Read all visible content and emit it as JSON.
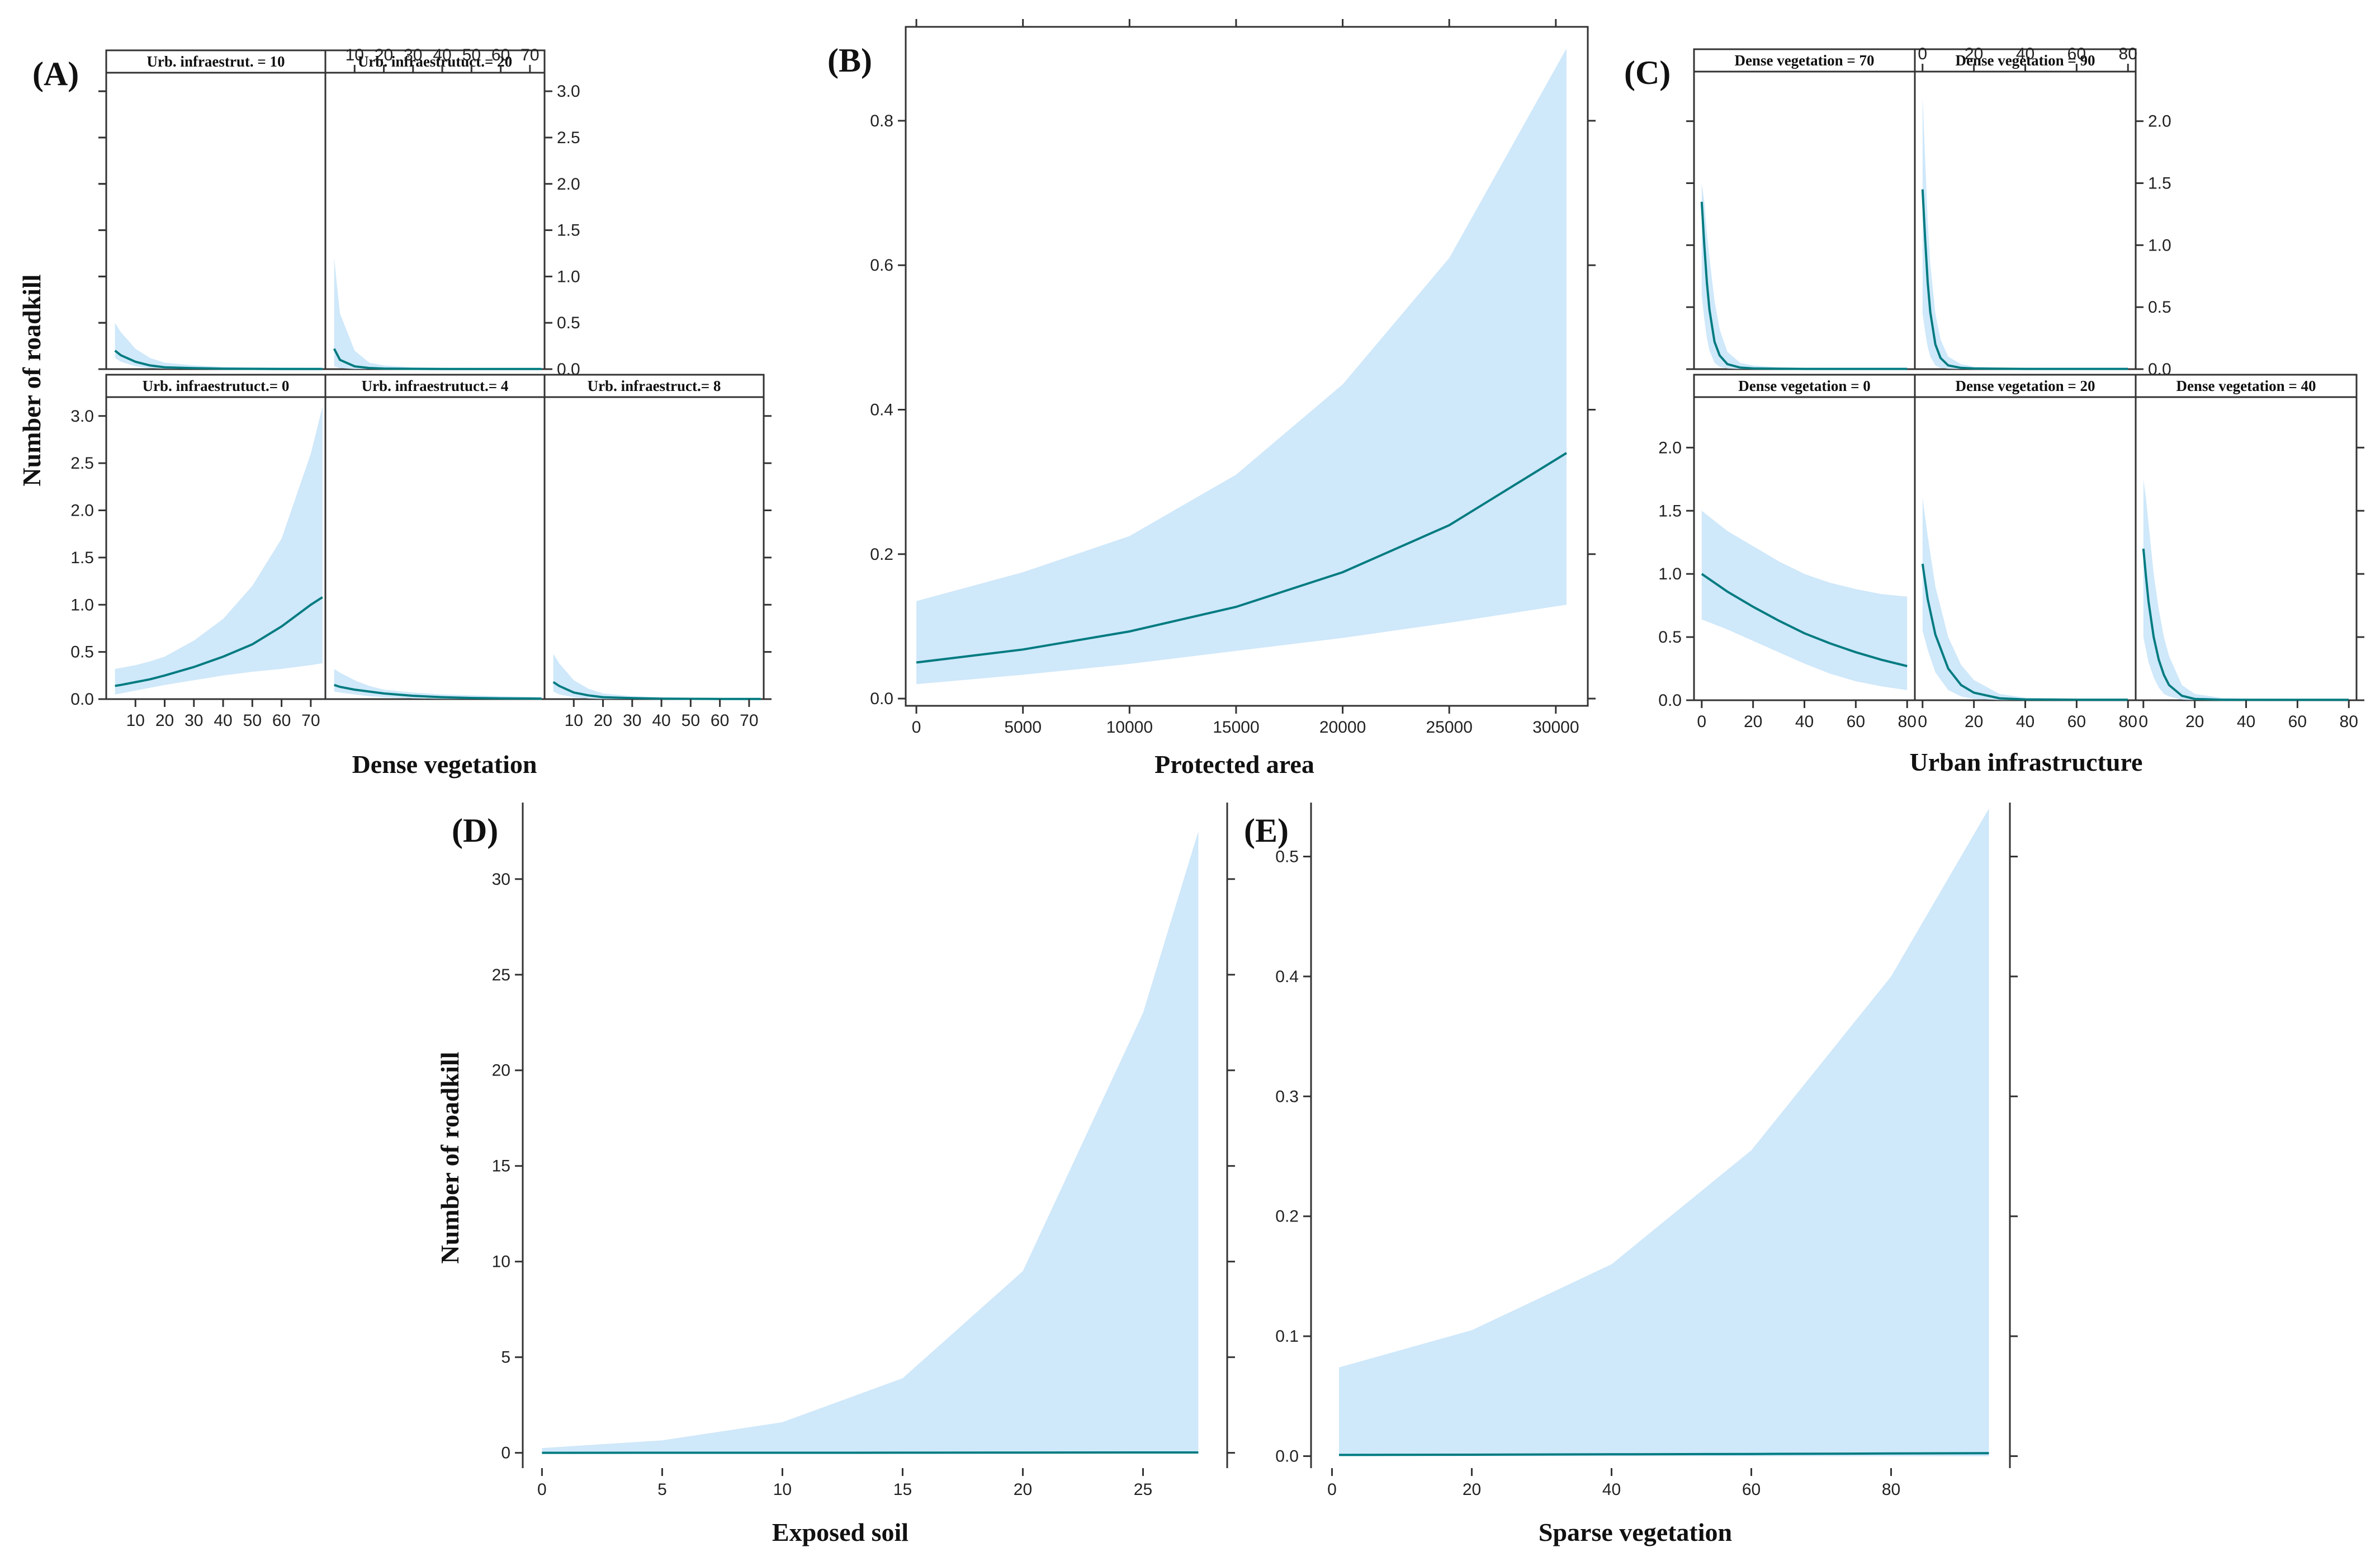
{
  "figure": {
    "y_axis_label": "Number of roadkill",
    "panel_labels": [
      "(A)",
      "(B)",
      "(C)",
      "(D)",
      "(E)"
    ]
  },
  "chart_data": [
    {
      "id": "A",
      "type": "line",
      "title": "(A)",
      "xlabel": "Dense vegetation",
      "ylabel": "Number of roadkill",
      "xlim": [
        0,
        75
      ],
      "ylim": [
        0,
        3.2
      ],
      "xticks": [
        10,
        20,
        30,
        40,
        50,
        60,
        70
      ],
      "yticks": [
        0.0,
        0.5,
        1.0,
        1.5,
        2.0,
        2.5,
        3.0
      ],
      "ytick_labels": [
        "0.0",
        "0.5",
        "1.0",
        "1.5",
        "2.0",
        "2.5",
        "3.0"
      ],
      "series": [
        {
          "name": "Urb. infraestrut. = 10",
          "x": [
            3,
            5,
            10,
            15,
            20,
            30,
            40,
            50,
            60,
            70,
            74
          ],
          "values": [
            0.2,
            0.15,
            0.08,
            0.04,
            0.02,
            0.01,
            0.005,
            0.003,
            0.002,
            0.002,
            0.002
          ],
          "lower": [
            0.12,
            0.08,
            0.03,
            0.01,
            0.005,
            0.002,
            0.001,
            0.0005,
            0.0003,
            0.0002,
            0.0002
          ],
          "upper": [
            0.5,
            0.4,
            0.22,
            0.12,
            0.07,
            0.04,
            0.025,
            0.02,
            0.018,
            0.016,
            0.016
          ]
        },
        {
          "name": "Urb. infraestrutuct.= 20",
          "x": [
            3,
            5,
            10,
            15,
            20,
            30,
            40,
            50,
            60,
            70,
            74
          ],
          "values": [
            0.22,
            0.1,
            0.03,
            0.012,
            0.006,
            0.003,
            0.002,
            0.002,
            0.002,
            0.002,
            0.002
          ],
          "lower": [
            0.03,
            0.01,
            0.002,
            0.001,
            0.0005,
            0.0002,
            0.0001,
            0.0001,
            0.0001,
            0.0001,
            0.0001
          ],
          "upper": [
            1.2,
            0.6,
            0.2,
            0.07,
            0.04,
            0.02,
            0.015,
            0.012,
            0.01,
            0.01,
            0.01
          ]
        },
        {
          "name": "Urb. infraestrutuct.= 0",
          "x": [
            3,
            5,
            10,
            15,
            20,
            30,
            40,
            50,
            60,
            70,
            74
          ],
          "values": [
            0.14,
            0.15,
            0.18,
            0.21,
            0.25,
            0.34,
            0.45,
            0.58,
            0.77,
            1.0,
            1.08
          ],
          "lower": [
            0.05,
            0.06,
            0.09,
            0.12,
            0.15,
            0.2,
            0.25,
            0.29,
            0.32,
            0.36,
            0.38
          ],
          "upper": [
            0.32,
            0.33,
            0.36,
            0.4,
            0.45,
            0.62,
            0.85,
            1.2,
            1.7,
            2.6,
            3.1
          ]
        },
        {
          "name": "Urb. infraestrutuct.= 4",
          "x": [
            3,
            5,
            10,
            15,
            20,
            30,
            40,
            50,
            60,
            70,
            74
          ],
          "values": [
            0.15,
            0.13,
            0.1,
            0.08,
            0.06,
            0.035,
            0.02,
            0.012,
            0.008,
            0.006,
            0.005
          ],
          "lower": [
            0.08,
            0.07,
            0.05,
            0.03,
            0.02,
            0.008,
            0.003,
            0.001,
            0.0005,
            0.0003,
            0.0002
          ],
          "upper": [
            0.32,
            0.28,
            0.2,
            0.14,
            0.1,
            0.07,
            0.05,
            0.04,
            0.03,
            0.025,
            0.022
          ]
        },
        {
          "name": "Urb. infraestruct.= 8",
          "x": [
            3,
            5,
            10,
            15,
            20,
            30,
            40,
            50,
            60,
            70,
            74
          ],
          "values": [
            0.18,
            0.14,
            0.07,
            0.04,
            0.02,
            0.01,
            0.005,
            0.003,
            0.002,
            0.002,
            0.002
          ],
          "lower": [
            0.08,
            0.05,
            0.02,
            0.006,
            0.002,
            0.0005,
            0.0001,
            0.0001,
            0.0001,
            0.0001,
            0.0001
          ],
          "upper": [
            0.48,
            0.38,
            0.2,
            0.11,
            0.06,
            0.03,
            0.02,
            0.015,
            0.012,
            0.01,
            0.01
          ]
        }
      ]
    },
    {
      "id": "B",
      "type": "line",
      "title": "(B)",
      "xlabel": "Protected area",
      "ylabel": "",
      "xlim": [
        -500,
        31500
      ],
      "ylim": [
        -0.01,
        0.93
      ],
      "xticks": [
        0,
        5000,
        10000,
        15000,
        20000,
        25000,
        30000
      ],
      "yticks": [
        0.0,
        0.2,
        0.4,
        0.6,
        0.8
      ],
      "ytick_labels": [
        "0.0",
        "0.2",
        "0.4",
        "0.6",
        "0.8"
      ],
      "series": [
        {
          "name": "fit",
          "x": [
            0,
            5000,
            10000,
            15000,
            20000,
            25000,
            30500
          ],
          "values": [
            0.05,
            0.068,
            0.093,
            0.127,
            0.175,
            0.24,
            0.34
          ],
          "lower": [
            0.02,
            0.033,
            0.048,
            0.066,
            0.084,
            0.105,
            0.13
          ],
          "upper": [
            0.135,
            0.175,
            0.225,
            0.31,
            0.435,
            0.61,
            0.9
          ]
        }
      ]
    },
    {
      "id": "C",
      "type": "line",
      "title": "(C)",
      "xlabel": "Urban infrastructure",
      "ylabel": "",
      "xlim": [
        -3,
        83
      ],
      "ylim": [
        0,
        2.4
      ],
      "xticks": [
        0,
        20,
        40,
        60,
        80
      ],
      "yticks": [
        0.0,
        0.5,
        1.0,
        1.5,
        2.0
      ],
      "ytick_labels": [
        "0.0",
        "0.5",
        "1.0",
        "1.5",
        "2.0"
      ],
      "series": [
        {
          "name": "Dense vegetation = 70",
          "x": [
            0,
            1,
            2,
            3,
            5,
            7,
            10,
            15,
            20,
            30,
            40,
            60,
            80
          ],
          "values": [
            1.35,
            1.0,
            0.7,
            0.48,
            0.22,
            0.11,
            0.04,
            0.012,
            0.006,
            0.003,
            0.002,
            0.002,
            0.002
          ],
          "lower": [
            0.6,
            0.4,
            0.25,
            0.15,
            0.05,
            0.02,
            0.005,
            0.001,
            0.0005,
            0.0002,
            0.0001,
            0.0001,
            0.0001
          ],
          "upper": [
            1.5,
            1.35,
            1.1,
            0.9,
            0.55,
            0.32,
            0.14,
            0.05,
            0.03,
            0.015,
            0.01,
            0.008,
            0.008
          ]
        },
        {
          "name": "Dense vegetation = 90",
          "x": [
            0,
            1,
            2,
            3,
            5,
            7,
            10,
            15,
            20,
            30,
            40,
            60,
            80
          ],
          "values": [
            1.45,
            1.05,
            0.7,
            0.46,
            0.2,
            0.09,
            0.03,
            0.01,
            0.005,
            0.003,
            0.002,
            0.002,
            0.002
          ],
          "lower": [
            0.45,
            0.3,
            0.18,
            0.1,
            0.03,
            0.01,
            0.003,
            0.001,
            0.0005,
            0.0002,
            0.0001,
            0.0001,
            0.0001
          ],
          "upper": [
            2.2,
            1.7,
            1.2,
            0.85,
            0.45,
            0.24,
            0.1,
            0.04,
            0.02,
            0.012,
            0.01,
            0.008,
            0.008
          ]
        },
        {
          "name": "Dense vegetation = 0",
          "x": [
            0,
            10,
            20,
            30,
            40,
            50,
            60,
            70,
            80
          ],
          "values": [
            1.0,
            0.86,
            0.74,
            0.63,
            0.53,
            0.45,
            0.38,
            0.32,
            0.27
          ],
          "lower": [
            0.64,
            0.56,
            0.47,
            0.38,
            0.29,
            0.21,
            0.15,
            0.11,
            0.08
          ],
          "upper": [
            1.5,
            1.34,
            1.22,
            1.1,
            1.0,
            0.93,
            0.88,
            0.84,
            0.82
          ]
        },
        {
          "name": "Dense vegetation = 20",
          "x": [
            0,
            2,
            5,
            10,
            15,
            20,
            30,
            40,
            60,
            80
          ],
          "values": [
            1.08,
            0.8,
            0.52,
            0.25,
            0.12,
            0.06,
            0.015,
            0.006,
            0.004,
            0.004
          ],
          "lower": [
            0.55,
            0.4,
            0.22,
            0.08,
            0.03,
            0.01,
            0.002,
            0.0005,
            0.0002,
            0.0002
          ],
          "upper": [
            1.6,
            1.3,
            0.9,
            0.5,
            0.28,
            0.16,
            0.05,
            0.02,
            0.01,
            0.01
          ]
        },
        {
          "name": "Dense vegetation = 40",
          "x": [
            0,
            1,
            2,
            4,
            6,
            8,
            10,
            15,
            20,
            30,
            40,
            60,
            80
          ],
          "values": [
            1.2,
            0.98,
            0.78,
            0.5,
            0.32,
            0.2,
            0.12,
            0.035,
            0.01,
            0.004,
            0.003,
            0.003,
            0.003
          ],
          "lower": [
            0.5,
            0.4,
            0.3,
            0.18,
            0.1,
            0.05,
            0.03,
            0.005,
            0.001,
            0.0002,
            0.0001,
            0.0001,
            0.0001
          ],
          "upper": [
            1.75,
            1.6,
            1.4,
            1.0,
            0.72,
            0.5,
            0.35,
            0.12,
            0.05,
            0.02,
            0.012,
            0.01,
            0.01
          ]
        }
      ]
    },
    {
      "id": "D",
      "type": "line",
      "title": "(D)",
      "xlabel": "Exposed soil",
      "ylabel": "Number of roadkill",
      "xlim": [
        -0.8,
        28.5
      ],
      "ylim": [
        -0.8,
        34
      ],
      "xticks": [
        0,
        5,
        10,
        15,
        20,
        25
      ],
      "yticks": [
        0,
        5,
        10,
        15,
        20,
        25,
        30
      ],
      "ytick_labels": [
        "0",
        "5",
        "10",
        "15",
        "20",
        "25",
        "30"
      ],
      "series": [
        {
          "name": "fit",
          "x": [
            0,
            5,
            10,
            15,
            20,
            25,
            27.3
          ],
          "values": [
            0.002,
            0.003,
            0.005,
            0.008,
            0.012,
            0.018,
            0.02
          ],
          "lower": [
            0.0,
            0.0,
            0.0,
            0.0,
            0.0,
            0.0,
            0.0
          ],
          "upper": [
            0.25,
            0.65,
            1.6,
            3.9,
            9.5,
            23.0,
            32.5
          ]
        }
      ]
    },
    {
      "id": "E",
      "type": "line",
      "title": "(E)",
      "xlabel": "Sparse vegetation",
      "ylabel": "",
      "xlim": [
        -3,
        97
      ],
      "ylim": [
        -0.01,
        0.545
      ],
      "xticks": [
        0,
        20,
        40,
        60,
        80
      ],
      "yticks": [
        0.0,
        0.1,
        0.2,
        0.3,
        0.4,
        0.5
      ],
      "ytick_labels": [
        "0.0",
        "0.1",
        "0.2",
        "0.3",
        "0.4",
        "0.5"
      ],
      "series": [
        {
          "name": "fit",
          "x": [
            1,
            20,
            40,
            60,
            80,
            94
          ],
          "values": [
            0.001,
            0.0012,
            0.0015,
            0.0018,
            0.0022,
            0.0025
          ],
          "lower": [
            0.0,
            0.0,
            0.0,
            0.0,
            0.0,
            0.0
          ],
          "upper": [
            0.074,
            0.105,
            0.16,
            0.255,
            0.4,
            0.54
          ]
        }
      ]
    }
  ]
}
